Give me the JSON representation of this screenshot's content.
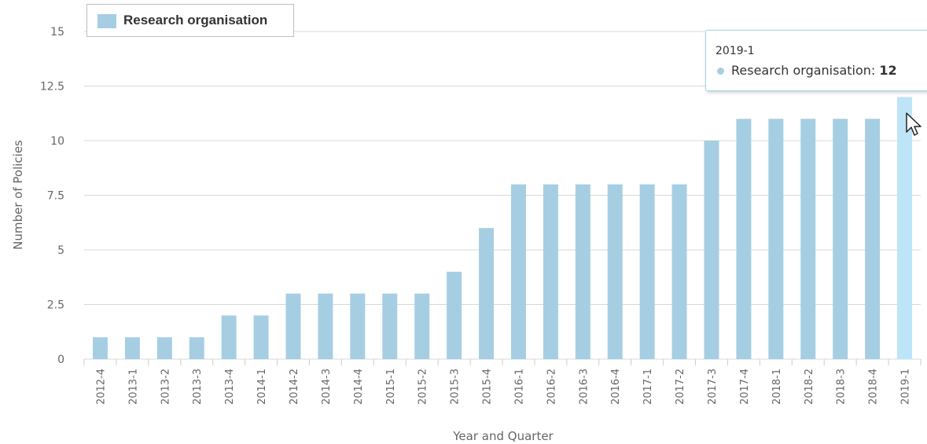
{
  "chart_data": {
    "type": "bar",
    "title": "",
    "xlabel": "Year and Quarter",
    "ylabel": "Number of Policies",
    "ylim": [
      0,
      15
    ],
    "yticks": [
      0,
      2.5,
      5,
      7.5,
      10,
      12.5,
      15
    ],
    "categories": [
      "2012-4",
      "2013-1",
      "2013-2",
      "2013-3",
      "2013-4",
      "2014-1",
      "2014-2",
      "2014-3",
      "2014-4",
      "2015-1",
      "2015-2",
      "2015-3",
      "2015-4",
      "2016-1",
      "2016-2",
      "2016-3",
      "2016-4",
      "2017-1",
      "2017-2",
      "2017-3",
      "2017-4",
      "2018-1",
      "2018-2",
      "2018-3",
      "2018-4",
      "2019-1"
    ],
    "series": [
      {
        "name": "Research organisation",
        "values": [
          1,
          1,
          1,
          1,
          2,
          2,
          3,
          3,
          3,
          3,
          3,
          4,
          6,
          8,
          8,
          8,
          8,
          8,
          8,
          10,
          11,
          11,
          11,
          11,
          11,
          12
        ]
      }
    ],
    "grid": true,
    "legend_position": "top-left"
  },
  "colors": {
    "bar": "#a6cee3",
    "bar_highlight": "#bde4f7",
    "grid": "#d8d8d8",
    "axis_text": "#666666"
  },
  "tooltip": {
    "header": "2019-1",
    "series_label": "Research organisation: ",
    "value": "12"
  },
  "legend": {
    "label": "Research organisation"
  },
  "cursor_icon": "mouse-pointer-icon"
}
